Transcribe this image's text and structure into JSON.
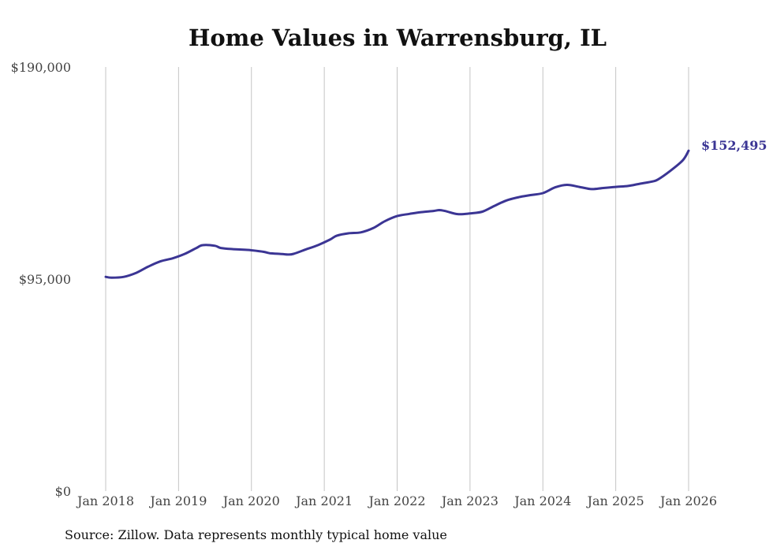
{
  "chart_data": {
    "type": "line",
    "title": "Home Values in Warrensburg, IL",
    "xlabel": "",
    "ylabel": "",
    "ylim": [
      0,
      190000
    ],
    "y_ticks": [
      {
        "value": 0,
        "label": "$0"
      },
      {
        "value": 95000,
        "label": "$95,000"
      },
      {
        "value": 190000,
        "label": "$190,000"
      }
    ],
    "x_ticks": [
      {
        "value": 2018,
        "label": "Jan 2018"
      },
      {
        "value": 2019,
        "label": "Jan 2019"
      },
      {
        "value": 2020,
        "label": "Jan 2020"
      },
      {
        "value": 2021,
        "label": "Jan 2021"
      },
      {
        "value": 2022,
        "label": "Jan 2022"
      },
      {
        "value": 2023,
        "label": "Jan 2023"
      },
      {
        "value": 2024,
        "label": "Jan 2024"
      },
      {
        "value": 2025,
        "label": "Jan 2025"
      },
      {
        "value": 2026,
        "label": "Jan 2026"
      }
    ],
    "grid": "vertical",
    "series": [
      {
        "name": "Typical home value",
        "color": "#3b3594",
        "points": [
          [
            2018.0,
            96000
          ],
          [
            2018.08,
            95600
          ],
          [
            2018.25,
            96000
          ],
          [
            2018.42,
            97800
          ],
          [
            2018.58,
            100500
          ],
          [
            2018.75,
            102900
          ],
          [
            2018.92,
            104300
          ],
          [
            2019.08,
            106200
          ],
          [
            2019.25,
            109000
          ],
          [
            2019.33,
            110200
          ],
          [
            2019.5,
            109900
          ],
          [
            2019.58,
            108900
          ],
          [
            2019.75,
            108400
          ],
          [
            2019.92,
            108100
          ],
          [
            2020.0,
            107900
          ],
          [
            2020.17,
            107200
          ],
          [
            2020.25,
            106600
          ],
          [
            2020.42,
            106200
          ],
          [
            2020.5,
            106000
          ],
          [
            2020.58,
            106300
          ],
          [
            2020.75,
            108300
          ],
          [
            2020.92,
            110300
          ],
          [
            2021.08,
            112700
          ],
          [
            2021.17,
            114400
          ],
          [
            2021.33,
            115500
          ],
          [
            2021.5,
            115900
          ],
          [
            2021.67,
            117800
          ],
          [
            2021.83,
            120900
          ],
          [
            2022.0,
            123200
          ],
          [
            2022.17,
            124200
          ],
          [
            2022.33,
            125000
          ],
          [
            2022.5,
            125500
          ],
          [
            2022.58,
            125900
          ],
          [
            2022.67,
            125400
          ],
          [
            2022.83,
            124100
          ],
          [
            2023.0,
            124400
          ],
          [
            2023.17,
            125200
          ],
          [
            2023.33,
            127700
          ],
          [
            2023.5,
            130200
          ],
          [
            2023.67,
            131700
          ],
          [
            2023.83,
            132600
          ],
          [
            2024.0,
            133500
          ],
          [
            2024.17,
            136100
          ],
          [
            2024.33,
            137200
          ],
          [
            2024.5,
            136300
          ],
          [
            2024.67,
            135300
          ],
          [
            2024.83,
            135800
          ],
          [
            2025.0,
            136300
          ],
          [
            2025.17,
            136700
          ],
          [
            2025.33,
            137700
          ],
          [
            2025.5,
            138700
          ],
          [
            2025.58,
            139600
          ],
          [
            2025.75,
            143500
          ],
          [
            2025.92,
            148200
          ],
          [
            2026.0,
            152495
          ]
        ],
        "end_label": "$152,495"
      }
    ]
  },
  "source_text": "Source: Zillow. Data represents monthly typical home value"
}
